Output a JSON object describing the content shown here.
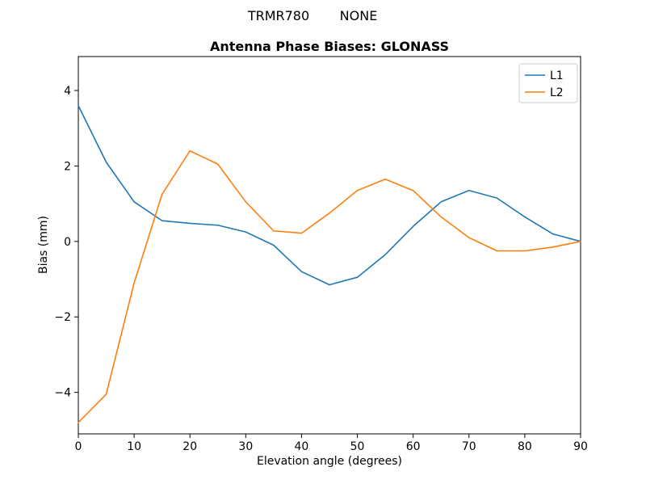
{
  "figure": {
    "suptitle": {
      "part1": "TRMR780",
      "part2": "NONE"
    }
  },
  "legend": {
    "position": "upper right",
    "entries": [
      {
        "label": "L1",
        "color": "#1f77b4"
      },
      {
        "label": "L2",
        "color": "#ff7f0e"
      }
    ]
  },
  "chart_data": {
    "type": "line",
    "title": "Antenna Phase Biases: GLONASS",
    "xlabel": "Elevation angle (degrees)",
    "ylabel": "Bias (mm)",
    "xlim": [
      0,
      90
    ],
    "ylim": [
      -5.1,
      4.9
    ],
    "xticks": [
      0,
      10,
      20,
      30,
      40,
      50,
      60,
      70,
      80,
      90
    ],
    "yticks": [
      -4,
      -2,
      0,
      2,
      4
    ],
    "grid": false,
    "legend_position": "upper right",
    "x": [
      0,
      5,
      10,
      15,
      20,
      25,
      30,
      35,
      40,
      45,
      50,
      55,
      60,
      65,
      70,
      75,
      80,
      85,
      90
    ],
    "series": [
      {
        "name": "L1",
        "color": "#1f77b4",
        "values": [
          3.6,
          2.1,
          1.05,
          0.55,
          0.48,
          0.43,
          0.25,
          -0.1,
          -0.8,
          -1.15,
          -0.95,
          -0.35,
          0.4,
          1.05,
          1.35,
          1.15,
          0.65,
          0.2,
          0.0
        ]
      },
      {
        "name": "L2",
        "color": "#ff7f0e",
        "values": [
          -4.8,
          -4.05,
          -1.1,
          1.25,
          2.4,
          2.05,
          1.05,
          0.28,
          0.22,
          0.75,
          1.35,
          1.65,
          1.35,
          0.65,
          0.1,
          -0.25,
          -0.25,
          -0.15,
          0.0
        ]
      }
    ]
  }
}
